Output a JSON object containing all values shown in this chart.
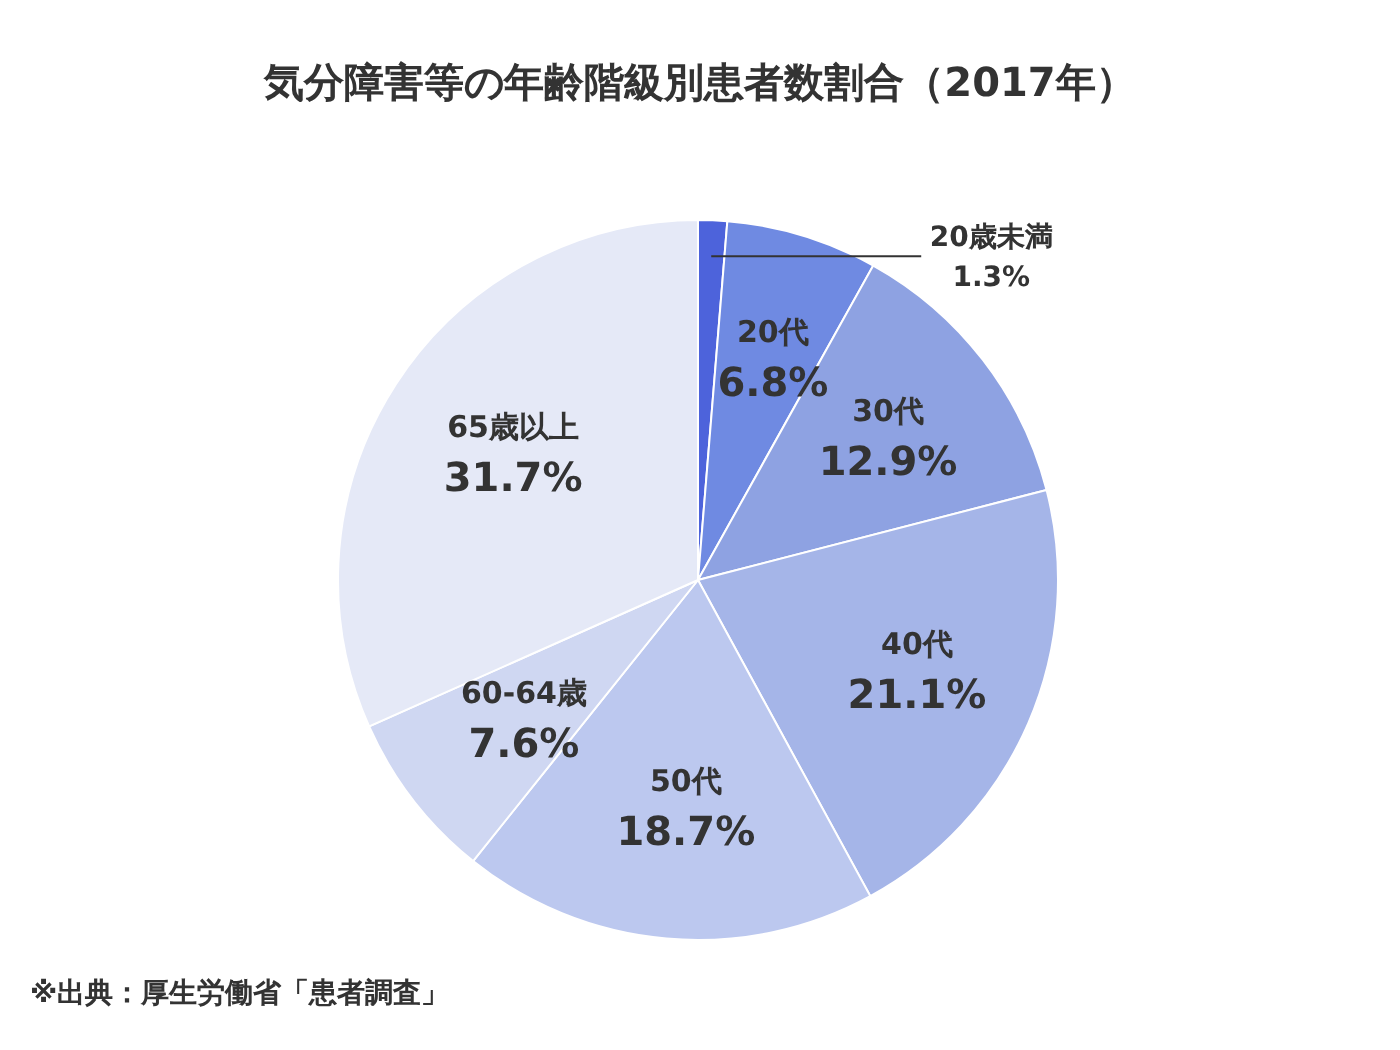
{
  "chart_data": {
    "type": "pie",
    "title": "気分障害等の年齢階級別患者数割合（2017年）",
    "categories": [
      "20歳未満",
      "20代",
      "30代",
      "40代",
      "50代",
      "60-64歳",
      "65歳以上"
    ],
    "values": [
      1.3,
      6.8,
      12.9,
      21.1,
      18.7,
      7.6,
      31.7
    ],
    "colors": [
      "#4d63db",
      "#6f8ae2",
      "#8ea2e2",
      "#a5b5e8",
      "#bcc8ef",
      "#cfd7f2",
      "#e5e9f7"
    ],
    "value_labels": [
      "1.3%",
      "6.8%",
      "12.9%",
      "21.1%",
      "18.7%",
      "7.6%",
      "31.7%"
    ],
    "legend": false,
    "annotations": [
      "※出典：厚生労働省「患者調査」"
    ]
  }
}
